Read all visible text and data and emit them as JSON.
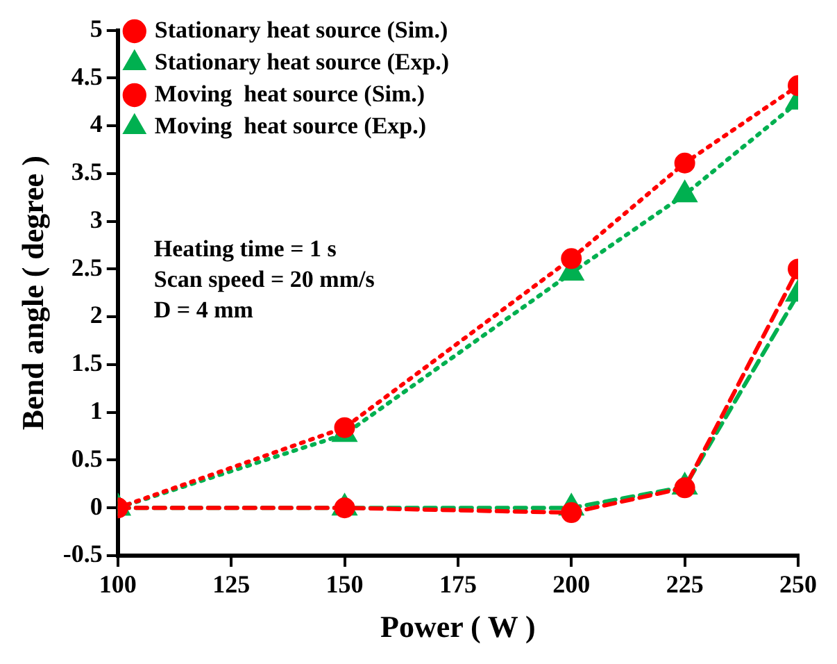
{
  "chart_data": {
    "type": "line",
    "xlabel": "Power ( W )",
    "ylabel": "Bend angle ( degree )",
    "x": [
      100,
      150,
      200,
      225,
      250
    ],
    "xlim": [
      100,
      250
    ],
    "xticks": [
      100,
      125,
      150,
      175,
      200,
      225,
      250
    ],
    "ylim": [
      -0.5,
      5
    ],
    "yticks": [
      -0.5,
      0,
      0.5,
      1,
      1.5,
      2,
      2.5,
      3,
      3.5,
      4,
      4.5,
      5
    ],
    "grid": false,
    "legend": "top left",
    "annotations": [
      "Heating time = 1 s",
      "Scan speed = 20 mm/s",
      "D = 4 mm"
    ],
    "series": [
      {
        "name": "Stationary heat source (Sim.)",
        "color": "#ff0000",
        "marker": "circle",
        "line_style": "dotted",
        "values": [
          0,
          0.84,
          2.61,
          3.61,
          4.42
        ]
      },
      {
        "name": "Stationary heat source (Exp.)",
        "color": "#00b050",
        "marker": "triangle",
        "line_style": "dotted",
        "values": [
          0,
          0.77,
          2.46,
          3.28,
          4.25
        ]
      },
      {
        "name": "Moving  heat source (Sim.)",
        "color": "#ff0000",
        "marker": "circle",
        "line_style": "dashed",
        "values": [
          0,
          0,
          -0.05,
          0.21,
          2.5
        ]
      },
      {
        "name": "Moving  heat source (Exp.)",
        "color": "#00b050",
        "marker": "triangle",
        "line_style": "dashed",
        "values": [
          0,
          0,
          0,
          0.22,
          2.24
        ]
      }
    ]
  }
}
